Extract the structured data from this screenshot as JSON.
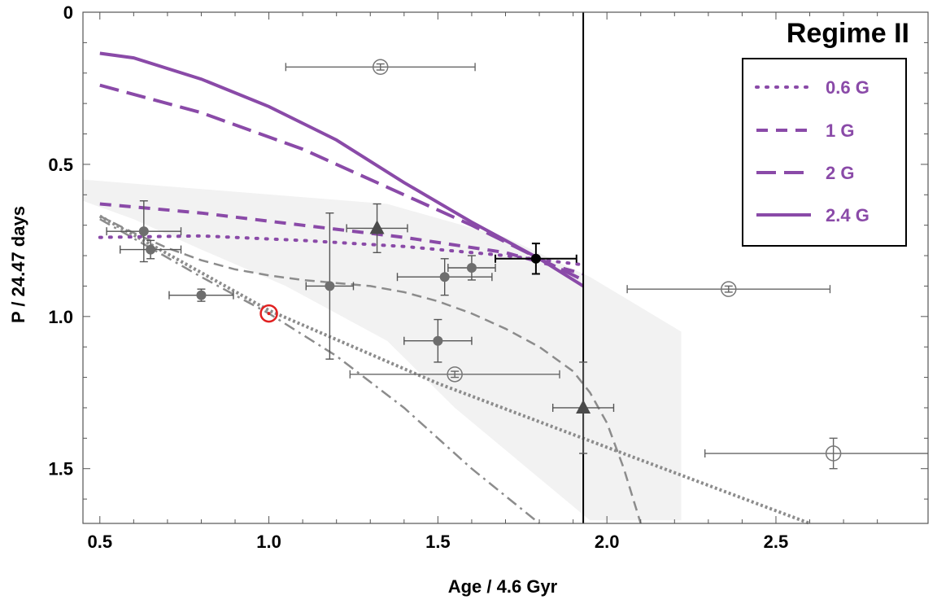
{
  "chart_data": {
    "type": "scatter",
    "title": "Regime II",
    "xlabel": "Age / 4.6 Gyr",
    "ylabel": "P / 24.47 days",
    "xlim": [
      0.45,
      2.95
    ],
    "ylim": [
      0,
      1.68
    ],
    "y_inverted": true,
    "x_ticks": [
      0.5,
      1.0,
      1.5,
      2.0,
      2.5
    ],
    "x_tick_labels": [
      "0.5",
      "1.0",
      "1.5",
      "2.0",
      "2.5"
    ],
    "y_ticks": [
      0,
      0.5,
      1.0,
      1.5
    ],
    "y_tick_labels": [
      "0",
      "0.5",
      "1.0",
      "1.5"
    ],
    "vertical_line_x": 1.93,
    "legend": {
      "placement": "top-right",
      "entries": [
        {
          "label": "0.6 G",
          "dash": "dotted"
        },
        {
          "label": "1 G",
          "dash": "short-dash"
        },
        {
          "label": "2 G",
          "dash": "long-dash"
        },
        {
          "label": "2.4 G",
          "dash": "solid"
        }
      ]
    },
    "colors": {
      "model": "#8a4aa8",
      "reference": "#8c8c8c",
      "band": "#f2f2f2",
      "sun": "#e02020",
      "point": "#6e6e6e",
      "highlight": "#000000"
    },
    "model_series": [
      {
        "name": "0.6 G",
        "dash": "dotted",
        "x": [
          0.5,
          0.8,
          1.1,
          1.4,
          1.7,
          1.93
        ],
        "y": [
          0.74,
          0.735,
          0.75,
          0.77,
          0.8,
          0.83
        ]
      },
      {
        "name": "1 G",
        "dash": "short-dash",
        "x": [
          0.5,
          0.8,
          1.1,
          1.4,
          1.7,
          1.93
        ],
        "y": [
          0.63,
          0.66,
          0.7,
          0.74,
          0.79,
          0.86
        ]
      },
      {
        "name": "2 G",
        "dash": "long-dash",
        "x": [
          0.5,
          0.8,
          1.1,
          1.4,
          1.6,
          1.8,
          1.93
        ],
        "y": [
          0.24,
          0.33,
          0.45,
          0.6,
          0.7,
          0.81,
          0.88
        ]
      },
      {
        "name": "2.4 G",
        "dash": "solid",
        "x": [
          0.5,
          0.6,
          0.8,
          1.0,
          1.2,
          1.4,
          1.6,
          1.8,
          1.93
        ],
        "y": [
          0.135,
          0.15,
          0.22,
          0.31,
          0.42,
          0.56,
          0.69,
          0.81,
          0.9
        ]
      }
    ],
    "reference_curves": [
      {
        "dash": "dense-dot",
        "x": [
          0.5,
          1.0,
          1.5,
          2.0,
          2.6
        ],
        "y": [
          0.67,
          0.98,
          1.22,
          1.43,
          1.68
        ]
      },
      {
        "dash": "dash-dot",
        "x": [
          0.5,
          0.8,
          1.0,
          1.2,
          1.4,
          1.6,
          1.8
        ],
        "y": [
          0.68,
          0.87,
          0.99,
          1.13,
          1.3,
          1.5,
          1.68
        ]
      },
      {
        "dash": "dash",
        "x": [
          0.5,
          0.6,
          0.7,
          0.8,
          0.9,
          1.0,
          1.1,
          1.2,
          1.3,
          1.4,
          1.5,
          1.6,
          1.7,
          1.8,
          1.9,
          1.95,
          2.0,
          2.05,
          2.1
        ],
        "y": [
          0.67,
          0.725,
          0.775,
          0.815,
          0.845,
          0.865,
          0.88,
          0.89,
          0.9,
          0.92,
          0.95,
          0.99,
          1.04,
          1.1,
          1.18,
          1.25,
          1.35,
          1.5,
          1.68
        ]
      }
    ],
    "band_polygon": {
      "x": [
        0.45,
        1.35,
        1.7,
        1.95,
        2.22,
        2.22,
        1.95,
        1.55,
        1.35,
        1.05,
        0.8,
        0.6,
        0.45
      ],
      "y": [
        0.55,
        0.63,
        0.74,
        0.87,
        1.05,
        1.67,
        1.67,
        1.3,
        1.08,
        0.9,
        0.78,
        0.68,
        0.62
      ]
    },
    "points_filled": [
      {
        "x": 0.63,
        "y": 0.72,
        "xerr": 0.11,
        "yerr": 0.1
      },
      {
        "x": 0.65,
        "y": 0.78,
        "xerr": 0.09,
        "yerr": 0.03
      },
      {
        "x": 0.8,
        "y": 0.93,
        "xerr": 0.095,
        "yerr": 0.02
      },
      {
        "x": 1.18,
        "y": 0.9,
        "xerr": 0.07,
        "yerr": 0.24
      },
      {
        "x": 1.52,
        "y": 0.87,
        "xerr": 0.14,
        "yerr": 0.06
      },
      {
        "x": 1.6,
        "y": 0.84,
        "xerr": 0.07,
        "yerr": 0.04
      },
      {
        "x": 1.5,
        "y": 1.08,
        "xerr": 0.1,
        "yerr": 0.07
      }
    ],
    "points_triangle": [
      {
        "x": 1.32,
        "y": 0.71,
        "xerr": 0.09,
        "yerr": 0.08
      },
      {
        "x": 1.93,
        "y": 1.3,
        "xerr": 0.09,
        "yerr": 0.15
      }
    ],
    "points_open": [
      {
        "x": 1.33,
        "y": 0.18,
        "xerr": 0.28,
        "yerr": 0.01
      },
      {
        "x": 1.55,
        "y": 1.19,
        "xerr": 0.31,
        "yerr": 0.01
      },
      {
        "x": 2.36,
        "y": 0.91,
        "xerr": 0.3,
        "yerr": 0.01
      },
      {
        "x": 2.67,
        "y": 1.45,
        "xerr": 0.38,
        "yerr": 0.05
      }
    ],
    "point_highlight": {
      "x": 1.79,
      "y": 0.81,
      "xerr": 0.12,
      "yerr": 0.05
    },
    "point_sun": {
      "x": 1.0,
      "y": 0.99
    }
  }
}
